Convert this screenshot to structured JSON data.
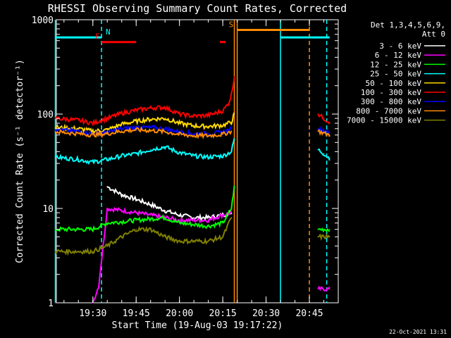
{
  "chart_data": {
    "type": "line",
    "title": "RHESSI Observing Summary Count Rates, Corrected",
    "xlabel": "Start Time (19-Aug-03 19:17:22)",
    "ylabel": "Corrected Count Rate (s⁻¹ detector⁻¹)",
    "yscale": "log",
    "ylim": [
      1,
      1000
    ],
    "xlim": [
      "19:17:22",
      "20:55:00"
    ],
    "x_ticks": [
      "19:30",
      "19:45",
      "20:00",
      "20:15",
      "20:30",
      "20:45"
    ],
    "y_ticks": [
      "1",
      "10",
      "100",
      "1000"
    ],
    "legend_header": [
      "Det 1,3,4,5,6,9,",
      "Att 0"
    ],
    "legend_position": "right",
    "series": [
      {
        "name": "3 - 6 keV",
        "color": "#ffffff",
        "points": [
          [
            "19:35",
            17
          ],
          [
            "19:40",
            14
          ],
          [
            "19:45",
            12.5
          ],
          [
            "19:50",
            11
          ],
          [
            "19:55",
            9.5
          ],
          [
            "20:00",
            8.5
          ],
          [
            "20:05",
            8
          ],
          [
            "20:10",
            8
          ],
          [
            "20:15",
            8.5
          ],
          [
            "20:18",
            9
          ]
        ]
      },
      {
        "name": "6 - 12 keV",
        "color": "#ff00ff",
        "points": [
          [
            "19:17",
            1
          ],
          [
            "19:30",
            1
          ],
          [
            "19:32",
            1.5
          ],
          [
            "19:35",
            10
          ],
          [
            "19:40",
            9.5
          ],
          [
            "19:45",
            9
          ],
          [
            "19:50",
            8.5
          ],
          [
            "19:55",
            8
          ],
          [
            "20:00",
            7.5
          ],
          [
            "20:05",
            7.5
          ],
          [
            "20:10",
            7.5
          ],
          [
            "20:15",
            8.5
          ],
          [
            "20:18",
            9
          ],
          [
            "20:48",
            1.4
          ],
          [
            "20:52",
            1.4
          ]
        ]
      },
      {
        "name": "12 - 25 keV",
        "color": "#00ff00",
        "points": [
          [
            "19:17",
            6
          ],
          [
            "19:25",
            6
          ],
          [
            "19:30",
            6
          ],
          [
            "19:35",
            7
          ],
          [
            "19:45",
            7.5
          ],
          [
            "19:55",
            8
          ],
          [
            "20:00",
            7
          ],
          [
            "20:10",
            6.5
          ],
          [
            "20:15",
            7
          ],
          [
            "20:18",
            10
          ],
          [
            "20:19",
            17
          ],
          [
            "20:48",
            6
          ],
          [
            "20:52",
            6
          ]
        ]
      },
      {
        "name": "25 - 50 keV",
        "color": "#00ffff",
        "points": [
          [
            "19:17",
            35
          ],
          [
            "19:25",
            33
          ],
          [
            "19:30",
            31
          ],
          [
            "19:35",
            33
          ],
          [
            "19:40",
            36
          ],
          [
            "19:45",
            38
          ],
          [
            "19:50",
            42
          ],
          [
            "19:55",
            45
          ],
          [
            "20:00",
            39
          ],
          [
            "20:05",
            36
          ],
          [
            "20:10",
            35
          ],
          [
            "20:15",
            36
          ],
          [
            "20:18",
            40
          ],
          [
            "20:19",
            55
          ],
          [
            "20:48",
            42
          ],
          [
            "20:50",
            38
          ],
          [
            "20:52",
            34
          ]
        ]
      },
      {
        "name": "50 - 100 keV",
        "color": "#ffd700",
        "points": [
          [
            "19:17",
            72
          ],
          [
            "19:25",
            70
          ],
          [
            "19:30",
            66
          ],
          [
            "19:35",
            68
          ],
          [
            "19:40",
            78
          ],
          [
            "19:45",
            84
          ],
          [
            "19:50",
            88
          ],
          [
            "19:55",
            90
          ],
          [
            "20:00",
            80
          ],
          [
            "20:05",
            75
          ],
          [
            "20:10",
            74
          ],
          [
            "20:15",
            76
          ],
          [
            "20:18",
            82
          ],
          [
            "20:19",
            100
          ]
        ]
      },
      {
        "name": "100 - 300 keV",
        "color": "#ff0000",
        "points": [
          [
            "19:17",
            90
          ],
          [
            "19:25",
            86
          ],
          [
            "19:30",
            80
          ],
          [
            "19:35",
            90
          ],
          [
            "19:40",
            102
          ],
          [
            "19:45",
            110
          ],
          [
            "19:50",
            116
          ],
          [
            "19:55",
            118
          ],
          [
            "20:00",
            100
          ],
          [
            "20:05",
            95
          ],
          [
            "20:10",
            97
          ],
          [
            "20:15",
            108
          ],
          [
            "20:17",
            130
          ],
          [
            "20:18",
            160
          ],
          [
            "20:19",
            250
          ],
          [
            "20:48",
            100
          ],
          [
            "20:50",
            90
          ],
          [
            "20:52",
            82
          ]
        ]
      },
      {
        "name": "300 - 800 keV",
        "color": "#0000ff",
        "points": [
          [
            "19:17",
            68
          ],
          [
            "19:25",
            66
          ],
          [
            "19:30",
            62
          ],
          [
            "19:35",
            64
          ],
          [
            "19:40",
            70
          ],
          [
            "19:45",
            72
          ],
          [
            "19:50",
            72
          ],
          [
            "19:55",
            70
          ],
          [
            "20:00",
            65
          ],
          [
            "20:05",
            62
          ],
          [
            "20:10",
            62
          ],
          [
            "20:15",
            64
          ],
          [
            "20:18",
            70
          ],
          [
            "20:48",
            70
          ],
          [
            "20:52",
            64
          ]
        ]
      },
      {
        "name": "800 - 7000 keV",
        "color": "#ff8c00",
        "points": [
          [
            "19:17",
            65
          ],
          [
            "19:25",
            62
          ],
          [
            "19:30",
            60
          ],
          [
            "19:35",
            62
          ],
          [
            "19:40",
            66
          ],
          [
            "19:45",
            68
          ],
          [
            "19:50",
            67
          ],
          [
            "19:55",
            65
          ],
          [
            "20:00",
            61
          ],
          [
            "20:05",
            59
          ],
          [
            "20:10",
            59
          ],
          [
            "20:15",
            61
          ],
          [
            "20:18",
            66
          ],
          [
            "20:48",
            66
          ],
          [
            "20:52",
            60
          ]
        ]
      },
      {
        "name": "7000 - 15000 keV",
        "color": "#808000",
        "points": [
          [
            "19:17",
            3.5
          ],
          [
            "19:25",
            3.5
          ],
          [
            "19:30",
            3.5
          ],
          [
            "19:35",
            4
          ],
          [
            "19:40",
            5
          ],
          [
            "19:45",
            6
          ],
          [
            "19:50",
            6
          ],
          [
            "19:55",
            5
          ],
          [
            "20:00",
            4.5
          ],
          [
            "20:05",
            4.5
          ],
          [
            "20:10",
            4.5
          ],
          [
            "20:15",
            5
          ],
          [
            "20:18",
            8
          ],
          [
            "20:48",
            5
          ],
          [
            "20:52",
            5
          ]
        ]
      }
    ],
    "flag_bars": [
      {
        "label": "N",
        "color": "#00ffff",
        "y": 650,
        "start": "19:17",
        "end": "19:33"
      },
      {
        "label": "",
        "color": "#00ffff",
        "y": 650,
        "start": "20:35",
        "end": "20:52"
      },
      {
        "label": "F",
        "color": "#ff0000",
        "y": 580,
        "start": "19:33",
        "end": "19:45"
      },
      {
        "label": "",
        "color": "#ff0000",
        "y": 580,
        "start": "20:14",
        "end": "20:16"
      },
      {
        "label": "S",
        "color": "#ff8c00",
        "y": 780,
        "start": "20:20",
        "end": "20:45"
      }
    ],
    "vertical_markers": [
      {
        "time": "19:17",
        "color": "#00ffff",
        "style": "solid"
      },
      {
        "time": "19:33",
        "color": "#00ffff",
        "style": "dashed"
      },
      {
        "time": "20:19",
        "color": "#ff8c00",
        "style": "solid"
      },
      {
        "time": "20:20",
        "color": "#ff8c00",
        "style": "solid"
      },
      {
        "time": "20:35",
        "color": "#00ffff",
        "style": "solid"
      },
      {
        "time": "20:45",
        "color": "#ff8c00",
        "style": "dashed"
      },
      {
        "time": "20:51",
        "color": "#00ffff",
        "style": "dashed"
      }
    ]
  },
  "footer": {
    "timestamp": "22-Oct-2021 13:31"
  }
}
